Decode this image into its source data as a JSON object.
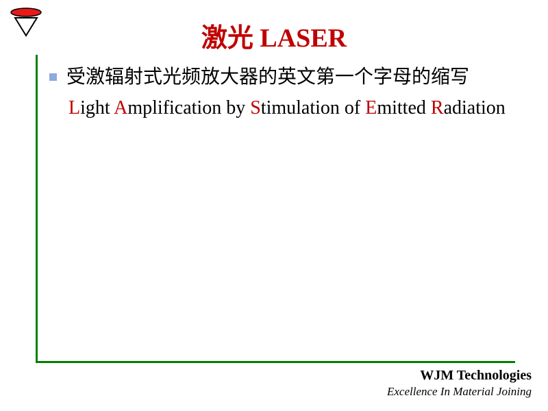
{
  "colors": {
    "title": "#c00000",
    "bullet": "#8faadc",
    "green_line": "#008000",
    "text": "#000000",
    "initial": "#c00000",
    "logo_red": "#e81b1b",
    "logo_black": "#000000"
  },
  "title": {
    "text_cn": "激光",
    "text_en": "LASER"
  },
  "bullet1": {
    "text": "受激辐射式光频放大器的英文第一个字母的缩写"
  },
  "acronym": {
    "words": [
      {
        "initial": "L",
        "rest": "ight "
      },
      {
        "initial": "A",
        "rest": "mplification by "
      },
      {
        "initial": "S",
        "rest": "timulation of "
      },
      {
        "initial": "E",
        "rest": "mitted "
      },
      {
        "initial": "R",
        "rest": "adiation"
      }
    ]
  },
  "footer": {
    "company": "WJM Technologies",
    "tagline": "Excellence In Material Joining"
  }
}
